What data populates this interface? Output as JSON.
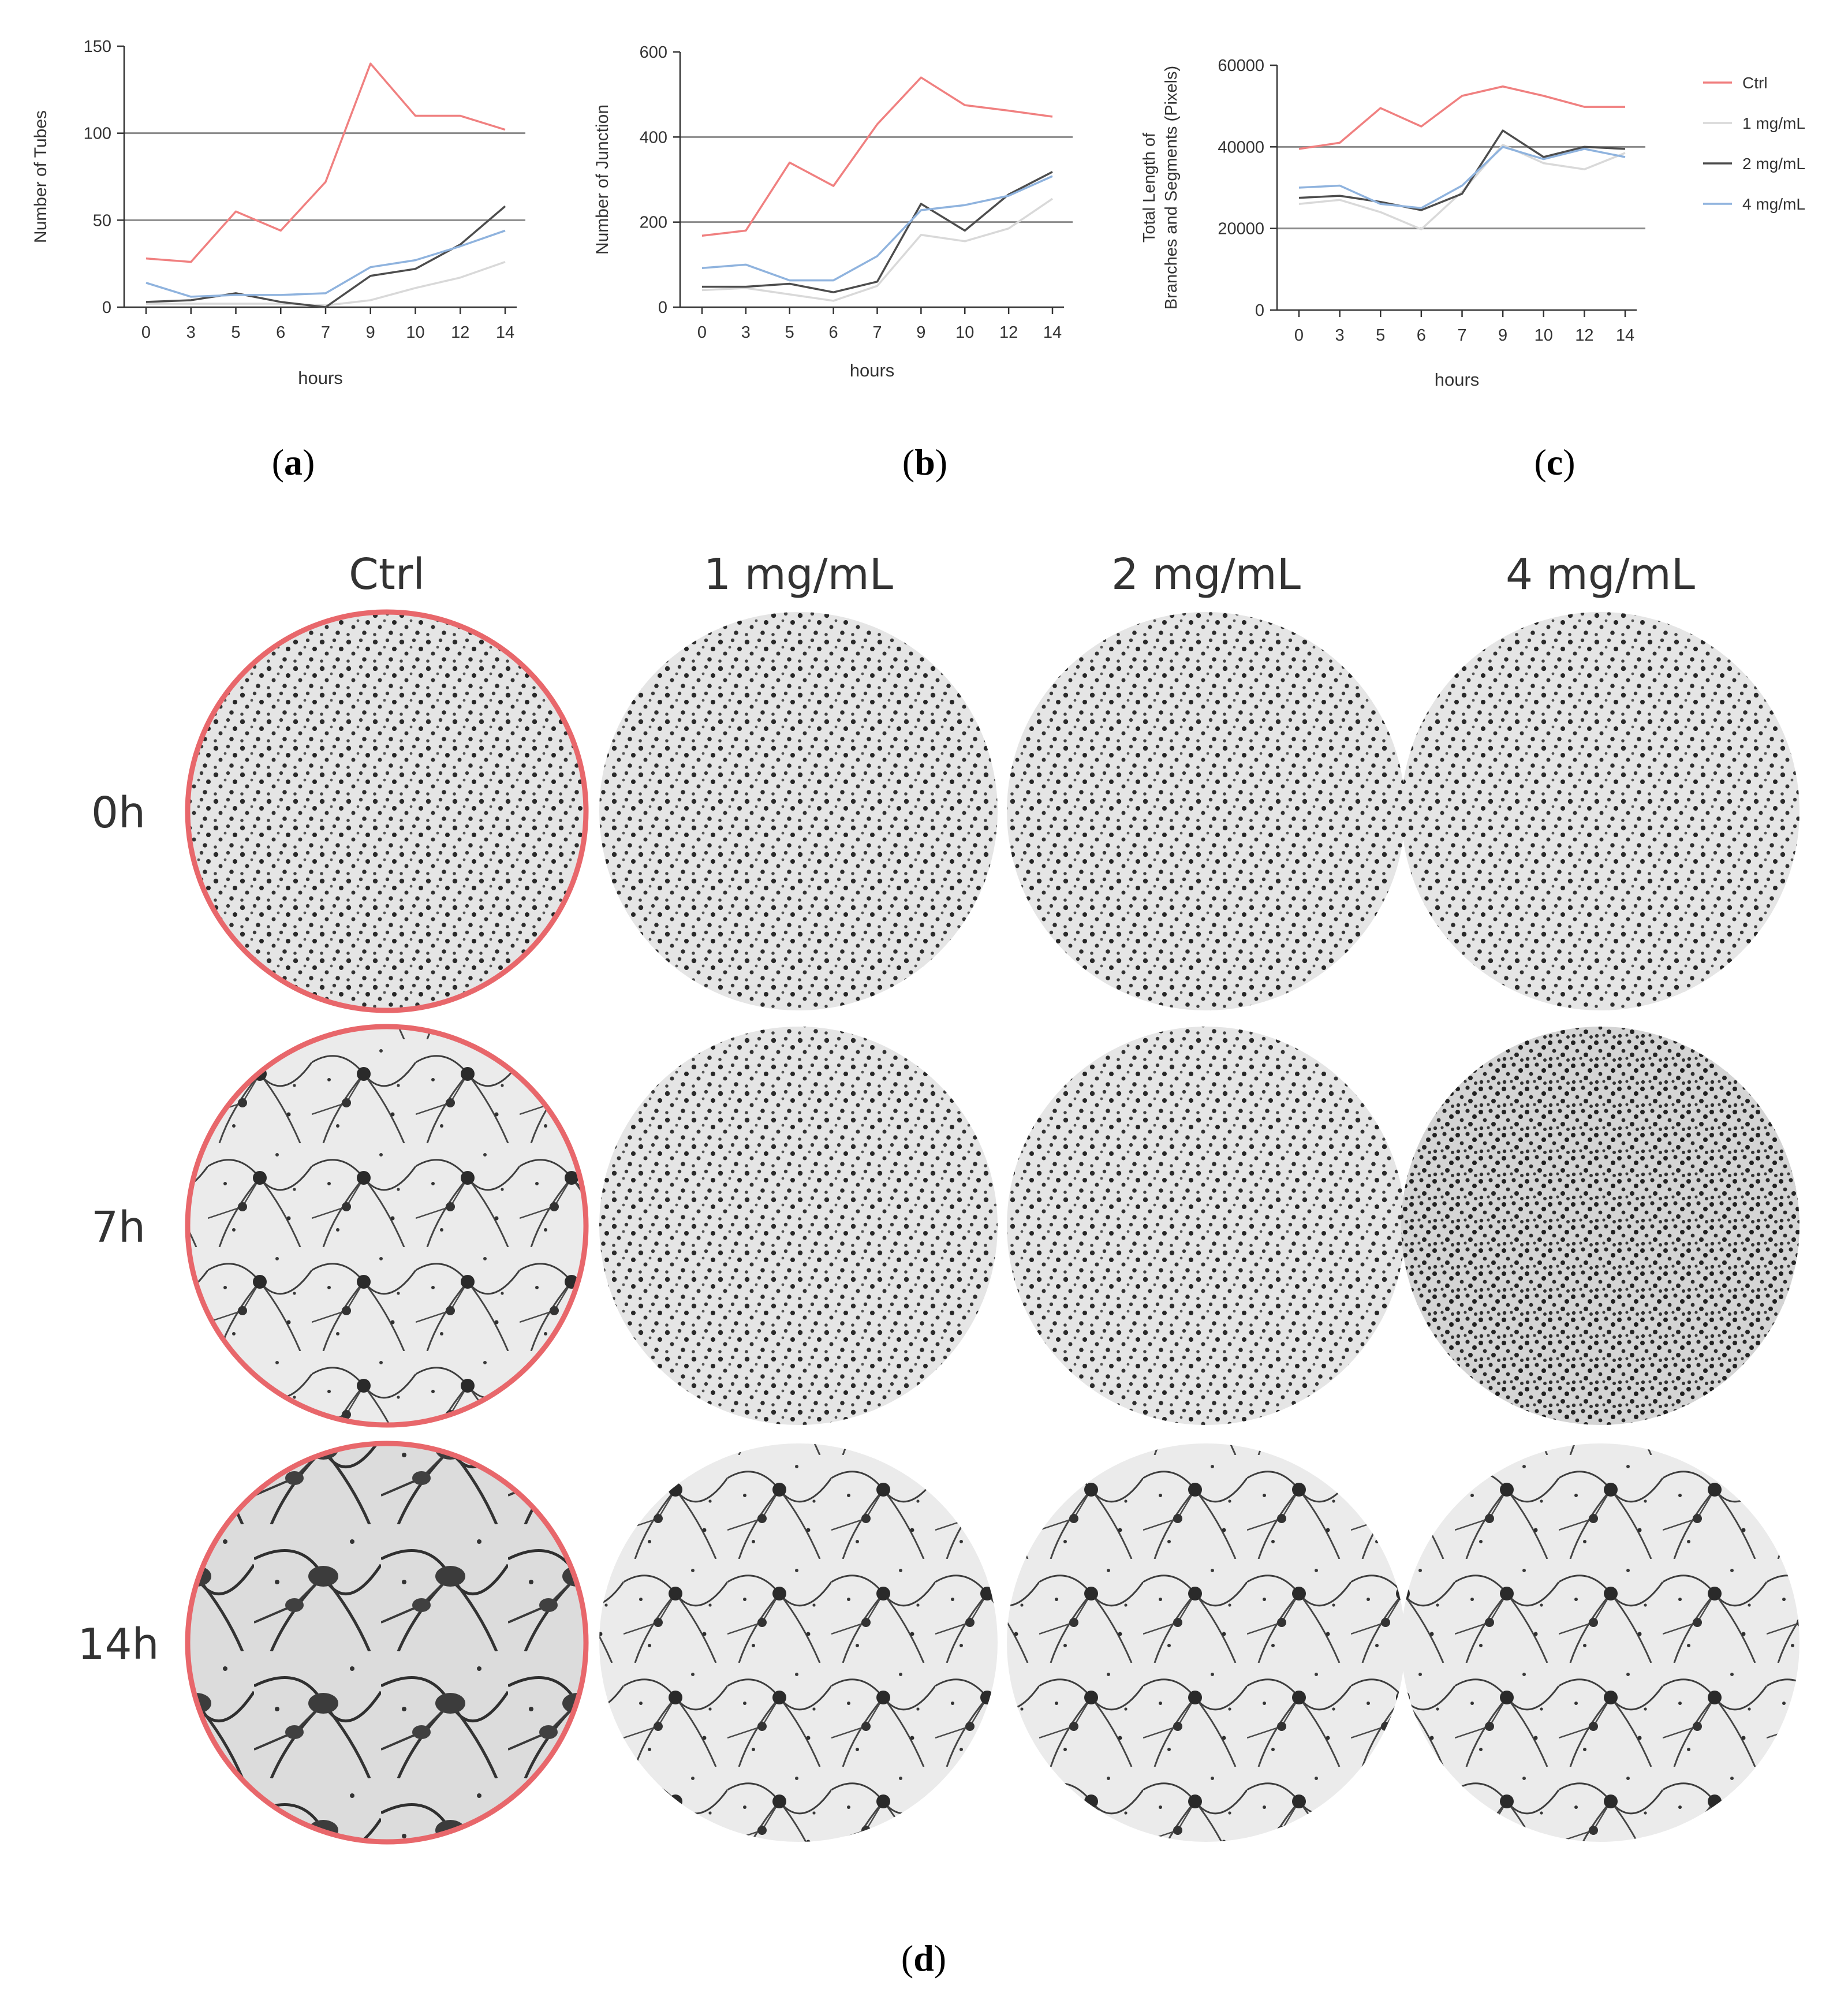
{
  "chart_data": [
    {
      "type": "line",
      "panel": "a",
      "xlabel": "hours",
      "ylabel": "Number of Tubes",
      "categories": [
        "0",
        "3",
        "5",
        "6",
        "7",
        "9",
        "10",
        "12",
        "14"
      ],
      "yticks": [
        "0",
        "50",
        "100",
        "150"
      ],
      "ylim": [
        0,
        150
      ],
      "gridlines": [
        50,
        100
      ],
      "series": [
        {
          "name": "Ctrl",
          "color": "#f08080",
          "values": [
            28,
            26,
            55,
            44,
            72,
            140,
            110,
            110,
            102
          ]
        },
        {
          "name": "1 mg/mL",
          "color": "#d9d9d9",
          "values": [
            2,
            2,
            2,
            2,
            1,
            4,
            11,
            17,
            26
          ]
        },
        {
          "name": "2 mg/mL",
          "color": "#4d4d4d",
          "values": [
            3,
            4,
            8,
            3,
            0,
            18,
            22,
            36,
            58
          ]
        },
        {
          "name": "4 mg/mL",
          "color": "#8fb3de",
          "values": [
            14,
            6,
            7,
            7,
            8,
            23,
            27,
            35,
            44
          ]
        }
      ]
    },
    {
      "type": "line",
      "panel": "b",
      "xlabel": "hours",
      "ylabel": "Number of Junction",
      "categories": [
        "0",
        "3",
        "5",
        "6",
        "7",
        "9",
        "10",
        "12",
        "14"
      ],
      "yticks": [
        "0",
        "200",
        "400",
        "600"
      ],
      "ylim": [
        0,
        600
      ],
      "gridlines": [
        200,
        400
      ],
      "series": [
        {
          "name": "Ctrl",
          "color": "#f08080",
          "values": [
            168,
            180,
            340,
            285,
            430,
            540,
            475,
            462,
            448
          ]
        },
        {
          "name": "1 mg/mL",
          "color": "#d9d9d9",
          "values": [
            40,
            45,
            30,
            15,
            50,
            170,
            155,
            185,
            255
          ]
        },
        {
          "name": "2 mg/mL",
          "color": "#4d4d4d",
          "values": [
            48,
            48,
            55,
            35,
            60,
            243,
            180,
            265,
            318
          ]
        },
        {
          "name": "4 mg/mL",
          "color": "#8fb3de",
          "values": [
            92,
            100,
            63,
            63,
            120,
            228,
            240,
            262,
            308
          ]
        }
      ]
    },
    {
      "type": "line",
      "panel": "c",
      "xlabel": "hours",
      "ylabel_lines": [
        "Total Length of",
        "Branches and Segments (Pixels)"
      ],
      "categories": [
        "0",
        "3",
        "5",
        "6",
        "7",
        "9",
        "10",
        "12",
        "14"
      ],
      "yticks": [
        "0",
        "20000",
        "40000",
        "60000"
      ],
      "ylim": [
        0,
        60000
      ],
      "gridlines": [
        20000,
        40000
      ],
      "legend_position": "right",
      "series": [
        {
          "name": "Ctrl",
          "color": "#f08080",
          "values": [
            39500,
            41000,
            49500,
            45000,
            52500,
            54800,
            52500,
            49800,
            49800
          ]
        },
        {
          "name": "1 mg/mL",
          "color": "#d9d9d9",
          "values": [
            26000,
            27000,
            24000,
            19800,
            29000,
            40500,
            36000,
            34500,
            38500
          ]
        },
        {
          "name": "2 mg/mL",
          "color": "#4d4d4d",
          "values": [
            27500,
            28000,
            26500,
            24500,
            28500,
            44000,
            37500,
            40000,
            39500
          ]
        },
        {
          "name": "4 mg/mL",
          "color": "#8fb3de",
          "values": [
            30000,
            30500,
            26000,
            25000,
            30500,
            40000,
            37000,
            39500,
            37500
          ]
        }
      ]
    }
  ],
  "legend": [
    {
      "name": "Ctrl",
      "color": "#f08080"
    },
    {
      "name": "1 mg/mL",
      "color": "#d9d9d9"
    },
    {
      "name": "2 mg/mL",
      "color": "#4d4d4d"
    },
    {
      "name": "4 mg/mL",
      "color": "#8fb3de"
    }
  ],
  "panel_labels": {
    "a": "a",
    "b": "b",
    "c": "c",
    "d": "d"
  },
  "micrographs": {
    "columns": [
      "Ctrl",
      "1 mg/mL",
      "2 mg/mL",
      "4 mg/mL"
    ],
    "rows": [
      "0h",
      "7h",
      "14h"
    ],
    "highlight_column": "Ctrl",
    "highlight_color": "#e8676b"
  }
}
